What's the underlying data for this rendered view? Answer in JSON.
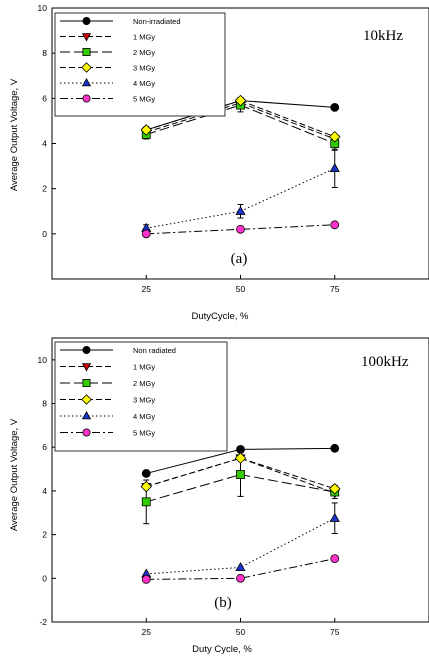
{
  "chart_data": [
    {
      "type": "line",
      "panel_label": "(a)",
      "annotation": "10kHz",
      "xlabel": "DutyCycle, %",
      "ylabel": "Average Output Voltage, V",
      "x": [
        25,
        50,
        75
      ],
      "xlim": [
        0,
        100
      ],
      "ylim": [
        -2,
        10
      ],
      "xticks": [
        "25",
        "50",
        "75"
      ],
      "yticks": [
        "0",
        "2",
        "4",
        "6",
        "8",
        "10"
      ],
      "grid": false,
      "legend_position": "top-left",
      "series": [
        {
          "name": "Non-irradiated",
          "values": [
            4.6,
            5.9,
            5.6
          ],
          "errors": [
            0,
            0,
            0
          ],
          "marker": "circle",
          "color": "#000000",
          "dash": "solid"
        },
        {
          "name": "1 MGy",
          "values": [
            4.5,
            5.8,
            4.2
          ],
          "errors": [
            0,
            0,
            0
          ],
          "marker": "triangle-down",
          "color": "#cc0000",
          "dash": "dash"
        },
        {
          "name": "2 MGy",
          "values": [
            4.4,
            5.7,
            4.0
          ],
          "errors": [
            0.2,
            0.3,
            0.3
          ],
          "marker": "square",
          "color": "#33cc00",
          "dash": "longdash"
        },
        {
          "name": "3 MGy",
          "values": [
            4.6,
            5.9,
            4.3
          ],
          "errors": [
            0,
            0,
            0
          ],
          "marker": "diamond",
          "color": "#ffff00",
          "dash": "dash"
        },
        {
          "name": "4 MGy",
          "values": [
            0.25,
            1.0,
            2.9
          ],
          "errors": [
            0.15,
            0.3,
            0.85
          ],
          "marker": "triangle-up",
          "color": "#1a33cc",
          "dash": "dot"
        },
        {
          "name": "5 MGy",
          "values": [
            0.0,
            0.2,
            0.4
          ],
          "errors": [
            0,
            0,
            0
          ],
          "marker": "circle",
          "color": "#ff33cc",
          "dash": "dashdot"
        }
      ]
    },
    {
      "type": "line",
      "panel_label": "(b)",
      "annotation": "100kHz",
      "xlabel": "Duty Cycle, %",
      "ylabel": "Average Output Voltage, V",
      "x": [
        25,
        50,
        75
      ],
      "xlim": [
        0,
        100
      ],
      "ylim": [
        -2,
        11
      ],
      "xticks": [
        "25",
        "50",
        "75"
      ],
      "yticks": [
        "-2",
        "0",
        "2",
        "4",
        "6",
        "8",
        "10"
      ],
      "grid": false,
      "legend_position": "top-left",
      "series": [
        {
          "name": "Non radiated",
          "values": [
            4.8,
            5.9,
            5.95
          ],
          "errors": [
            0,
            0,
            0
          ],
          "marker": "circle",
          "color": "#000000",
          "dash": "solid"
        },
        {
          "name": "1 MGy",
          "values": [
            4.2,
            5.5,
            3.9
          ],
          "errors": [
            0,
            0,
            0
          ],
          "marker": "triangle-down",
          "color": "#cc0000",
          "dash": "dash"
        },
        {
          "name": "2 MGy",
          "values": [
            3.5,
            4.75,
            3.95
          ],
          "errors": [
            1.0,
            1.0,
            0.3
          ],
          "marker": "square",
          "color": "#33cc00",
          "dash": "longdash"
        },
        {
          "name": "3 MGy",
          "values": [
            4.2,
            5.5,
            4.1
          ],
          "errors": [
            0,
            0,
            0
          ],
          "marker": "diamond",
          "color": "#ffff00",
          "dash": "dash"
        },
        {
          "name": "4 MGy",
          "values": [
            0.2,
            0.5,
            2.75
          ],
          "errors": [
            0,
            0,
            0.7
          ],
          "marker": "triangle-up",
          "color": "#1a33cc",
          "dash": "dot"
        },
        {
          "name": "5 MGy",
          "values": [
            -0.05,
            0.0,
            0.9
          ],
          "errors": [
            0,
            0,
            0
          ],
          "marker": "circle",
          "color": "#ff33cc",
          "dash": "dashdot"
        }
      ]
    }
  ]
}
